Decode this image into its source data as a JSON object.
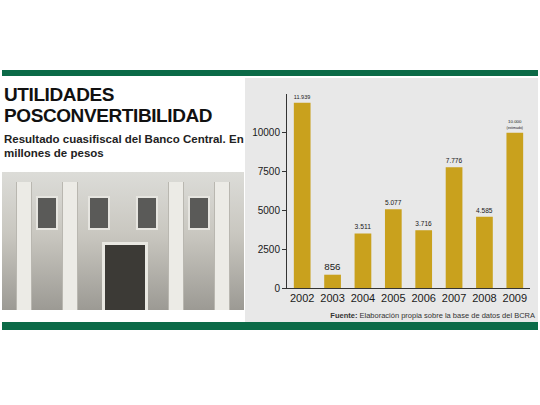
{
  "chart_data": {
    "type": "bar",
    "title": "UTILIDADES POSCONVERTIBILIDAD",
    "subtitle": "Resultado cuasifiscal del Banco Central. En millones de pesos",
    "source": "Fuente: Elaboración propia sobre la base de datos del BCRA",
    "categories": [
      "2002",
      "2003",
      "2004",
      "2005",
      "2006",
      "2007",
      "2008",
      "2009"
    ],
    "values": [
      11939,
      856,
      3511,
      5077,
      3716,
      7776,
      4585,
      10000
    ],
    "value_labels": [
      "11.939",
      "856",
      "3.511",
      "5.077",
      "3.716",
      "7.776",
      "4.585",
      "10.000"
    ],
    "data_labels": true,
    "annotations": [
      {
        "category": "2009",
        "text": "(estimado)"
      }
    ],
    "color": "#c9a11d",
    "ylim": [
      0,
      12500
    ],
    "yticks": [
      0,
      2500,
      5000,
      7500,
      10000
    ],
    "grid": false
  }
}
